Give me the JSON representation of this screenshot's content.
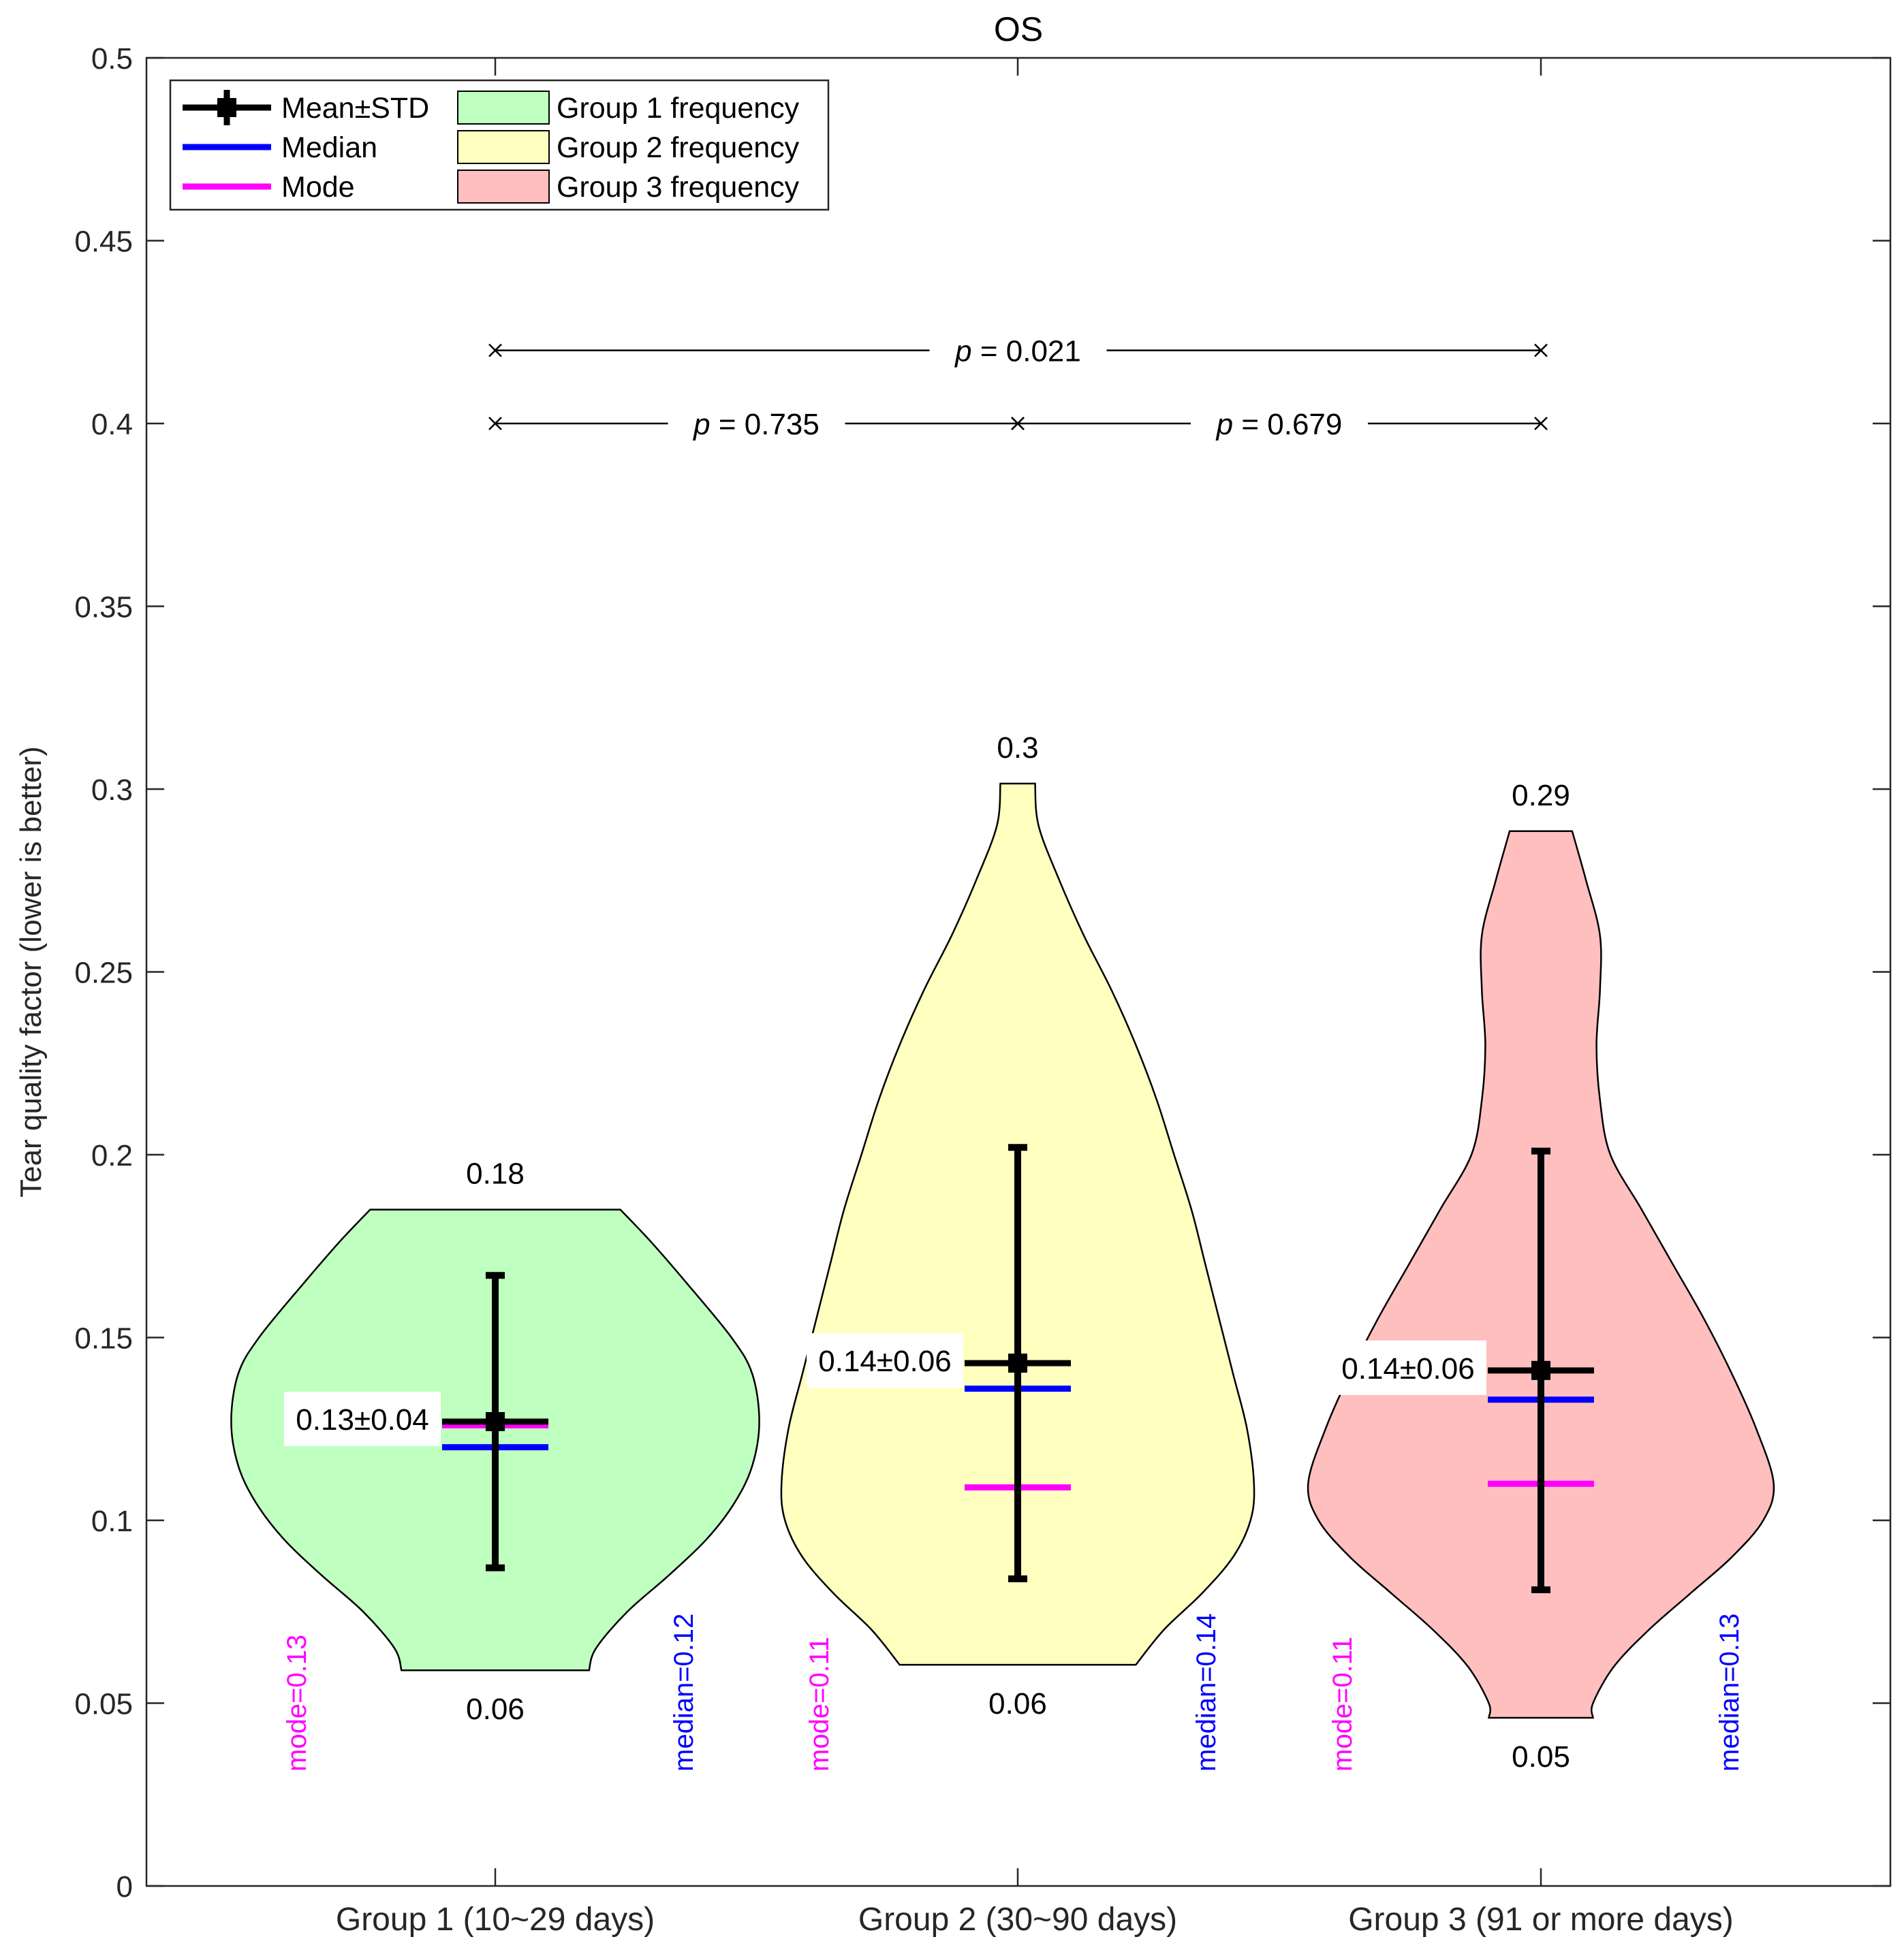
{
  "chart_data": {
    "type": "violin",
    "title": "OS",
    "xlabel": "",
    "ylabel": "Tear quality factor (lower is better)",
    "ylim": [
      0,
      0.5
    ],
    "yticks": [
      0,
      0.05,
      0.1,
      0.15,
      0.2,
      0.25,
      0.3,
      0.35,
      0.4,
      0.45,
      0.5
    ],
    "ytick_labels": [
      "0",
      "0.05",
      "0.1",
      "0.15",
      "0.2",
      "0.25",
      "0.3",
      "0.35",
      "0.4",
      "0.45",
      "0.5"
    ],
    "categories": [
      "Group 1 (10~29 days)",
      "Group 2 (30~90 days)",
      "Group 3 (91 or more days)"
    ],
    "colors": {
      "group1_fill": "#bfffbf",
      "group2_fill": "#ffffbf",
      "group3_fill": "#ffbfbf",
      "mean": "#000000",
      "median": "#0000ff",
      "mode": "#ff00ff"
    },
    "legend": {
      "position": "top-left",
      "entries": [
        {
          "label": "Mean±STD",
          "kind": "mean"
        },
        {
          "label": "Median",
          "kind": "median"
        },
        {
          "label": "Mode",
          "kind": "mode"
        },
        {
          "label": "Group 1 frequency",
          "kind": "group1"
        },
        {
          "label": "Group 2 frequency",
          "kind": "group2"
        },
        {
          "label": "Group 3 frequency",
          "kind": "group3"
        }
      ]
    },
    "groups": [
      {
        "name": "Group 1 (10~29 days)",
        "mean": 0.127,
        "std": 0.04,
        "median": 0.12,
        "mode": 0.126,
        "min": 0.059,
        "max": 0.185,
        "mean_label": "0.13±0.04",
        "max_label": "0.18",
        "min_label": "0.06",
        "mode_label": "mode=0.13",
        "median_label": "median=0.12",
        "density": [
          [
            0.185,
            0.36
          ],
          [
            0.176,
            0.45
          ],
          [
            0.165,
            0.55
          ],
          [
            0.15,
            0.68
          ],
          [
            0.14,
            0.74
          ],
          [
            0.127,
            0.76
          ],
          [
            0.115,
            0.74
          ],
          [
            0.105,
            0.69
          ],
          [
            0.095,
            0.61
          ],
          [
            0.085,
            0.5
          ],
          [
            0.075,
            0.38
          ],
          [
            0.065,
            0.29
          ],
          [
            0.059,
            0.27
          ]
        ]
      },
      {
        "name": "Group 2 (30~90 days)",
        "mean": 0.143,
        "std": 0.059,
        "median": 0.136,
        "mode": 0.109,
        "min": 0.0605,
        "max": 0.3015,
        "mean_label": "0.14±0.06",
        "max_label": "0.3",
        "min_label": "0.06",
        "mode_label": "mode=0.11",
        "median_label": "median=0.14",
        "density": [
          [
            0.3015,
            0.05
          ],
          [
            0.29,
            0.06
          ],
          [
            0.275,
            0.12
          ],
          [
            0.26,
            0.19
          ],
          [
            0.245,
            0.27
          ],
          [
            0.23,
            0.34
          ],
          [
            0.215,
            0.4
          ],
          [
            0.2,
            0.45
          ],
          [
            0.185,
            0.5
          ],
          [
            0.17,
            0.54
          ],
          [
            0.155,
            0.58
          ],
          [
            0.14,
            0.62
          ],
          [
            0.125,
            0.66
          ],
          [
            0.11,
            0.68
          ],
          [
            0.1,
            0.67
          ],
          [
            0.09,
            0.62
          ],
          [
            0.08,
            0.53
          ],
          [
            0.07,
            0.42
          ],
          [
            0.0605,
            0.34
          ]
        ]
      },
      {
        "name": "Group 3 (91 or more days)",
        "mean": 0.141,
        "std": 0.06,
        "median": 0.133,
        "mode": 0.11,
        "min": 0.046,
        "max": 0.2885,
        "mean_label": "0.14±0.06",
        "max_label": "0.29",
        "min_label": "0.05",
        "mode_label": "mode=0.11",
        "median_label": "median=0.13",
        "density": [
          [
            0.2885,
            0.09
          ],
          [
            0.275,
            0.13
          ],
          [
            0.26,
            0.17
          ],
          [
            0.245,
            0.17
          ],
          [
            0.23,
            0.16
          ],
          [
            0.215,
            0.17
          ],
          [
            0.2,
            0.2
          ],
          [
            0.185,
            0.29
          ],
          [
            0.17,
            0.38
          ],
          [
            0.155,
            0.47
          ],
          [
            0.14,
            0.55
          ],
          [
            0.125,
            0.62
          ],
          [
            0.11,
            0.67
          ],
          [
            0.1,
            0.64
          ],
          [
            0.09,
            0.55
          ],
          [
            0.08,
            0.43
          ],
          [
            0.07,
            0.31
          ],
          [
            0.06,
            0.21
          ],
          [
            0.05,
            0.15
          ],
          [
            0.046,
            0.15
          ]
        ]
      }
    ],
    "comparisons": [
      {
        "from": 0,
        "to": 1,
        "y": 0.4,
        "p_prefix": "p",
        "p_text": " = 0.735"
      },
      {
        "from": 1,
        "to": 2,
        "y": 0.4,
        "p_prefix": "p",
        "p_text": " = 0.679"
      },
      {
        "from": 0,
        "to": 2,
        "y": 0.42,
        "p_prefix": "p",
        "p_text": " = 0.021"
      }
    ]
  }
}
